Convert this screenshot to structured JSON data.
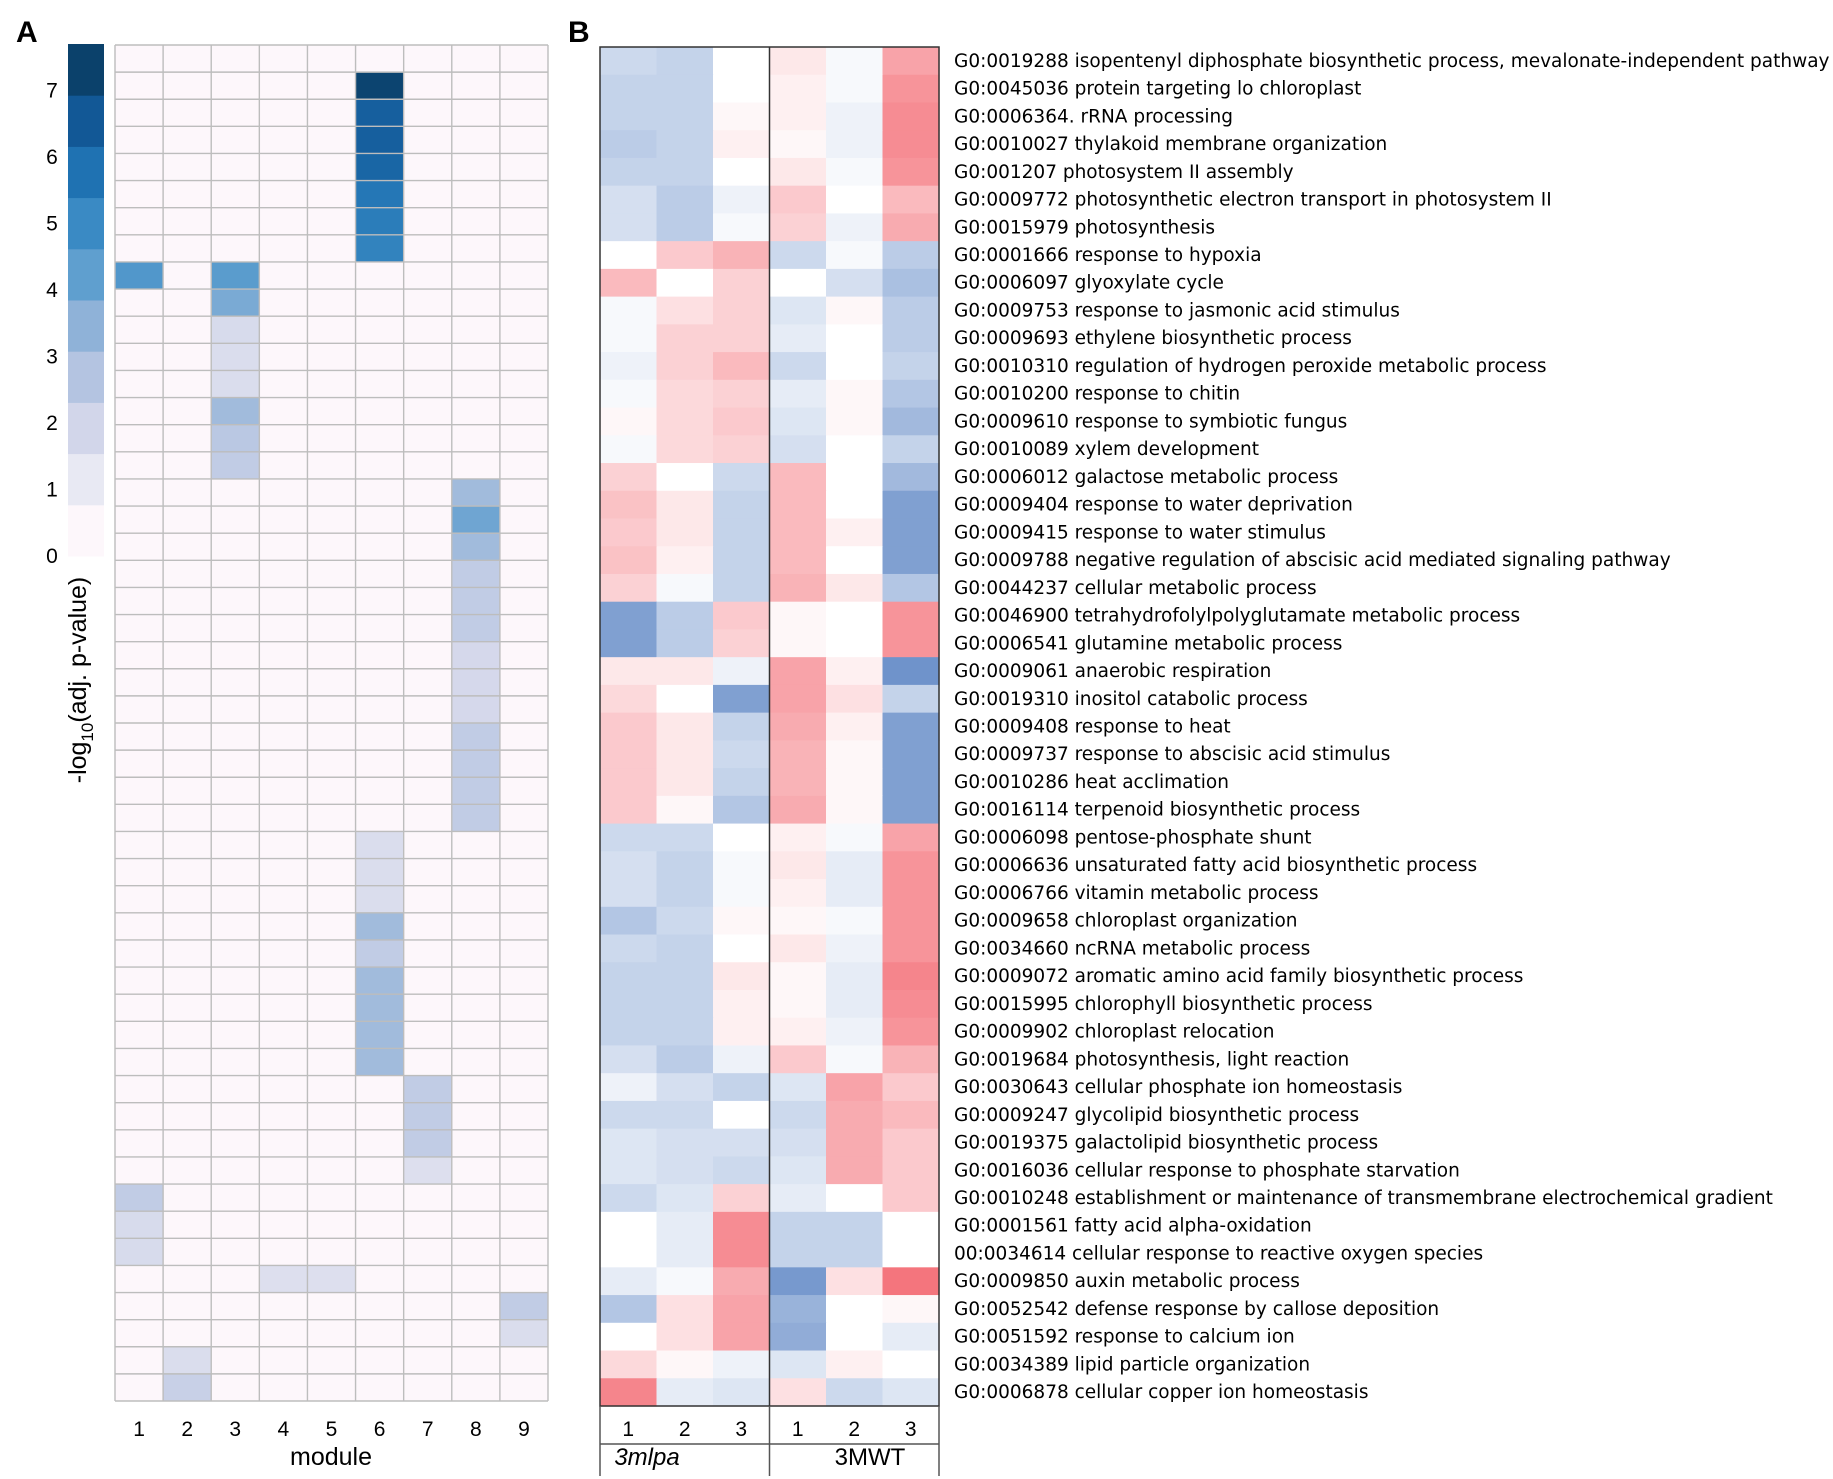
{
  "colors": {
    "blue_scale": [
      "#fdf7fb",
      "#e8e9f3",
      "#d2d6ea",
      "#b4c4e1",
      "#8fb2d8",
      "#5f9fcf",
      "#3a8ac4",
      "#1f72b2",
      "#125896",
      "#0b416b"
    ],
    "neg": "#5580c2",
    "pos": "#f3666f",
    "grid": "#bdbdbd",
    "axis": "#555555"
  },
  "chart_data": [
    {
      "type": "heatmap",
      "panel": "A",
      "xlabel": "module",
      "ylabel_parts": [
        "-log",
        "10",
        "(adj. p-value)"
      ],
      "modules": [
        "1",
        "2",
        "3",
        "4",
        "5",
        "6",
        "7",
        "8",
        "9"
      ],
      "colorbar_ticks": [
        "0",
        "1",
        "2",
        "3",
        "4",
        "5",
        "6",
        "7"
      ],
      "colorbar_range": [
        0,
        7.7
      ],
      "n_rows": 50,
      "cells": [
        [
          7,
          6,
          7.6
        ],
        [
          8,
          6,
          6.6
        ],
        [
          9,
          6,
          6.6
        ],
        [
          10,
          6,
          6.4
        ],
        [
          11,
          6,
          5.8
        ],
        [
          12,
          6,
          5.6
        ],
        [
          13,
          6,
          5.4
        ],
        [
          14,
          1,
          4.6
        ],
        [
          14,
          3,
          4.4
        ],
        [
          15,
          3,
          3.8
        ],
        [
          16,
          3,
          1.5
        ],
        [
          17,
          3,
          1.4
        ],
        [
          18,
          3,
          1.4
        ],
        [
          19,
          3,
          3.0
        ],
        [
          20,
          3,
          2.4
        ],
        [
          21,
          3,
          2.2
        ],
        [
          22,
          8,
          3.0
        ],
        [
          23,
          8,
          4.0
        ],
        [
          24,
          8,
          3.0
        ],
        [
          25,
          8,
          2.2
        ],
        [
          26,
          8,
          2.2
        ],
        [
          27,
          8,
          2.2
        ],
        [
          28,
          8,
          1.6
        ],
        [
          29,
          8,
          1.6
        ],
        [
          30,
          8,
          1.6
        ],
        [
          31,
          8,
          2.2
        ],
        [
          32,
          8,
          2.2
        ],
        [
          33,
          8,
          2.2
        ],
        [
          34,
          8,
          2.2
        ],
        [
          35,
          6,
          1.4
        ],
        [
          36,
          6,
          1.4
        ],
        [
          37,
          6,
          1.4
        ],
        [
          38,
          6,
          3.0
        ],
        [
          39,
          6,
          2.2
        ],
        [
          40,
          6,
          3.0
        ],
        [
          41,
          6,
          3.0
        ],
        [
          42,
          6,
          3.0
        ],
        [
          43,
          6,
          3.0
        ],
        [
          44,
          7,
          2.2
        ],
        [
          45,
          7,
          2.2
        ],
        [
          46,
          7,
          2.2
        ],
        [
          47,
          7,
          1.3
        ],
        [
          48,
          1,
          2.2
        ],
        [
          49,
          1,
          1.5
        ],
        [
          50,
          1,
          1.5
        ],
        [
          51,
          4,
          1.3
        ],
        [
          51,
          5,
          1.3
        ],
        [
          52,
          9,
          2.2
        ],
        [
          53,
          9,
          1.4
        ],
        [
          54,
          2,
          1.4
        ],
        [
          55,
          2,
          2.0
        ]
      ],
      "first_row_index": 6
    },
    {
      "type": "heatmap",
      "panel": "B",
      "columns": [
        "1",
        "2",
        "3",
        "1",
        "2",
        "3"
      ],
      "groups": [
        "3mlpa",
        "3MWT"
      ],
      "value_range": [
        -1,
        1
      ],
      "rows": [
        {
          "label": "G0:0019288 isopentenyl diphosphate biosynthetic process, mevalonate-independent pathway",
          "values": [
            -0.3,
            -0.35,
            0.0,
            0.15,
            -0.05,
            0.6
          ]
        },
        {
          "label": "G0:0045036 protein targeting lo chloroplast",
          "values": [
            -0.35,
            -0.35,
            0.0,
            0.1,
            -0.05,
            0.7
          ]
        },
        {
          "label": "G0:0006364. rRNA processing",
          "values": [
            -0.35,
            -0.35,
            0.05,
            0.1,
            -0.1,
            0.75
          ]
        },
        {
          "label": "G0:0010027 thylakoid membrane organization",
          "values": [
            -0.4,
            -0.35,
            0.1,
            0.05,
            -0.1,
            0.75
          ]
        },
        {
          "label": "G0:001207 photosystem II assembly",
          "values": [
            -0.35,
            -0.35,
            0.0,
            0.15,
            -0.05,
            0.7
          ]
        },
        {
          "label": "G0:0009772 photosynthetic electron transport in photosystem II",
          "values": [
            -0.25,
            -0.4,
            -0.1,
            0.35,
            0.0,
            0.45
          ]
        },
        {
          "label": "G0:0015979 photosynthesis",
          "values": [
            -0.25,
            -0.4,
            -0.05,
            0.3,
            -0.1,
            0.55
          ]
        },
        {
          "label": "G0:0001666 response to hypoxia",
          "values": [
            0.0,
            0.35,
            0.5,
            -0.3,
            -0.05,
            -0.4
          ]
        },
        {
          "label": "G0:0006097 glyoxylate cycle",
          "values": [
            0.45,
            0.0,
            0.3,
            0.0,
            -0.25,
            -0.5
          ]
        },
        {
          "label": "G0:0009753 response to jasmonic acid stimulus",
          "values": [
            -0.05,
            0.2,
            0.3,
            -0.2,
            0.05,
            -0.4
          ]
        },
        {
          "label": "G0:0009693 ethylene biosynthetic process",
          "values": [
            -0.05,
            0.3,
            0.3,
            -0.15,
            0.0,
            -0.4
          ]
        },
        {
          "label": "G0:0010310 regulation of hydrogen peroxide metabolic process",
          "values": [
            -0.1,
            0.3,
            0.45,
            -0.3,
            0.0,
            -0.35
          ]
        },
        {
          "label": "G0:0010200 response to chitin",
          "values": [
            -0.05,
            0.25,
            0.3,
            -0.15,
            0.05,
            -0.45
          ]
        },
        {
          "label": "G0:0009610 response to symbiotic fungus",
          "values": [
            0.05,
            0.25,
            0.35,
            -0.2,
            0.05,
            -0.55
          ]
        },
        {
          "label": "G0:0010089 xylem development",
          "values": [
            -0.05,
            0.25,
            0.3,
            -0.25,
            0.0,
            -0.35
          ]
        },
        {
          "label": "G0:0006012 galactose metabolic process",
          "values": [
            0.3,
            0.0,
            -0.3,
            0.45,
            0.0,
            -0.55
          ]
        },
        {
          "label": "G0:0009404 response to water deprivation",
          "values": [
            0.4,
            0.15,
            -0.35,
            0.45,
            0.0,
            -0.75
          ]
        },
        {
          "label": "G0:0009415 response to water stimulus",
          "values": [
            0.35,
            0.15,
            -0.35,
            0.45,
            0.1,
            -0.75
          ]
        },
        {
          "label": "G0:0009788 negative regulation of abscisic acid mediated signaling pathway",
          "values": [
            0.4,
            0.1,
            -0.35,
            0.45,
            0.0,
            -0.75
          ]
        },
        {
          "label": "G0:0044237 cellular metabolic process",
          "values": [
            0.3,
            -0.05,
            -0.35,
            0.5,
            0.15,
            -0.45
          ]
        },
        {
          "label": "G0:0046900 tetrahydrofolylpolyglutamate metabolic process",
          "values": [
            -0.75,
            -0.4,
            0.35,
            0.05,
            0.0,
            0.7
          ]
        },
        {
          "label": "G0:0006541 glutamine metabolic process",
          "values": [
            -0.75,
            -0.4,
            0.3,
            0.05,
            0.0,
            0.7
          ]
        },
        {
          "label": "G0:0009061 anaerobic respiration",
          "values": [
            0.15,
            0.15,
            -0.1,
            0.6,
            0.1,
            -0.85
          ]
        },
        {
          "label": "G0:0019310 inositol catabolic process",
          "values": [
            0.25,
            0.0,
            -0.75,
            0.6,
            0.2,
            -0.35
          ]
        },
        {
          "label": "G0:0009408 response to heat",
          "values": [
            0.35,
            0.15,
            -0.35,
            0.55,
            0.1,
            -0.75
          ]
        },
        {
          "label": "G0:0009737 response to abscisic acid stimulus",
          "values": [
            0.35,
            0.15,
            -0.3,
            0.5,
            0.05,
            -0.75
          ]
        },
        {
          "label": "G0:0010286 heat acclimation",
          "values": [
            0.35,
            0.15,
            -0.35,
            0.5,
            0.05,
            -0.75
          ]
        },
        {
          "label": "G0:0016114 terpenoid biosynthetic process",
          "values": [
            0.35,
            0.05,
            -0.45,
            0.55,
            0.05,
            -0.75
          ]
        },
        {
          "label": "G0:0006098 pentose-phosphate shunt",
          "values": [
            -0.3,
            -0.3,
            0.0,
            0.1,
            -0.05,
            0.6
          ]
        },
        {
          "label": "G0:0006636 unsaturated fatty acid biosynthetic process",
          "values": [
            -0.25,
            -0.35,
            -0.05,
            0.15,
            -0.15,
            0.7
          ]
        },
        {
          "label": "G0:0006766 vitamin metabolic process",
          "values": [
            -0.25,
            -0.35,
            -0.05,
            0.1,
            -0.15,
            0.7
          ]
        },
        {
          "label": "G0:0009658 chloroplast organization",
          "values": [
            -0.45,
            -0.3,
            0.05,
            0.05,
            -0.05,
            0.7
          ]
        },
        {
          "label": "G0:0034660 ncRNA metabolic process",
          "values": [
            -0.3,
            -0.35,
            0.0,
            0.15,
            -0.1,
            0.7
          ]
        },
        {
          "label": "G0:0009072 aromatic amino acid family biosynthetic process",
          "values": [
            -0.35,
            -0.35,
            0.15,
            0.05,
            -0.15,
            0.8
          ]
        },
        {
          "label": "G0:0015995 chlorophyll biosynthetic process",
          "values": [
            -0.35,
            -0.35,
            0.1,
            0.05,
            -0.15,
            0.75
          ]
        },
        {
          "label": "G0:0009902 chloroplast relocation",
          "values": [
            -0.35,
            -0.35,
            0.1,
            0.1,
            -0.1,
            0.7
          ]
        },
        {
          "label": "G0:0019684 photosynthesis, light reaction",
          "values": [
            -0.25,
            -0.4,
            -0.1,
            0.35,
            -0.05,
            0.5
          ]
        },
        {
          "label": "G0:0030643 cellular phosphate ion homeostasis",
          "values": [
            -0.1,
            -0.25,
            -0.35,
            -0.2,
            0.6,
            0.35
          ]
        },
        {
          "label": "G0:0009247 glycolipid biosynthetic process",
          "values": [
            -0.3,
            -0.3,
            0.0,
            -0.3,
            0.55,
            0.45
          ]
        },
        {
          "label": "G0:0019375 galactolipid biosynthetic process",
          "values": [
            -0.2,
            -0.25,
            -0.25,
            -0.25,
            0.55,
            0.35
          ]
        },
        {
          "label": "G0:0016036 cellular response to phosphate starvation",
          "values": [
            -0.2,
            -0.25,
            -0.3,
            -0.2,
            0.55,
            0.35
          ]
        },
        {
          "label": "G0:0010248 establishment or maintenance of transmembrane electrochemical gradient",
          "values": [
            -0.3,
            -0.2,
            0.3,
            -0.15,
            0.0,
            0.35
          ]
        },
        {
          "label": "G0:0001561 fatty acid alpha-oxidation",
          "values": [
            0.0,
            -0.15,
            0.75,
            -0.35,
            -0.35,
            0.0
          ]
        },
        {
          "label": "00:0034614 cellular response to reactive oxygen species",
          "values": [
            0.0,
            -0.15,
            0.75,
            -0.35,
            -0.35,
            0.0
          ]
        },
        {
          "label": "G0:0009850 auxin metabolic process",
          "values": [
            -0.15,
            -0.05,
            0.55,
            -0.8,
            0.2,
            0.9
          ]
        },
        {
          "label": "G0:0052542 defense response by callose deposition",
          "values": [
            -0.45,
            0.2,
            0.6,
            -0.6,
            0.0,
            0.05
          ]
        },
        {
          "label": "G0:0051592 response to calcium ion",
          "values": [
            0.0,
            0.2,
            0.6,
            -0.65,
            0.0,
            -0.15
          ]
        },
        {
          "label": "G0:0034389 lipid particle organization",
          "values": [
            0.25,
            0.05,
            -0.1,
            -0.2,
            0.1,
            0.0
          ]
        },
        {
          "label": "G0:0006878 cellular copper ion homeostasis",
          "values": [
            0.8,
            -0.15,
            -0.2,
            0.2,
            -0.3,
            -0.2
          ]
        }
      ]
    }
  ],
  "panel_labels": {
    "a": "A",
    "b": "B"
  }
}
